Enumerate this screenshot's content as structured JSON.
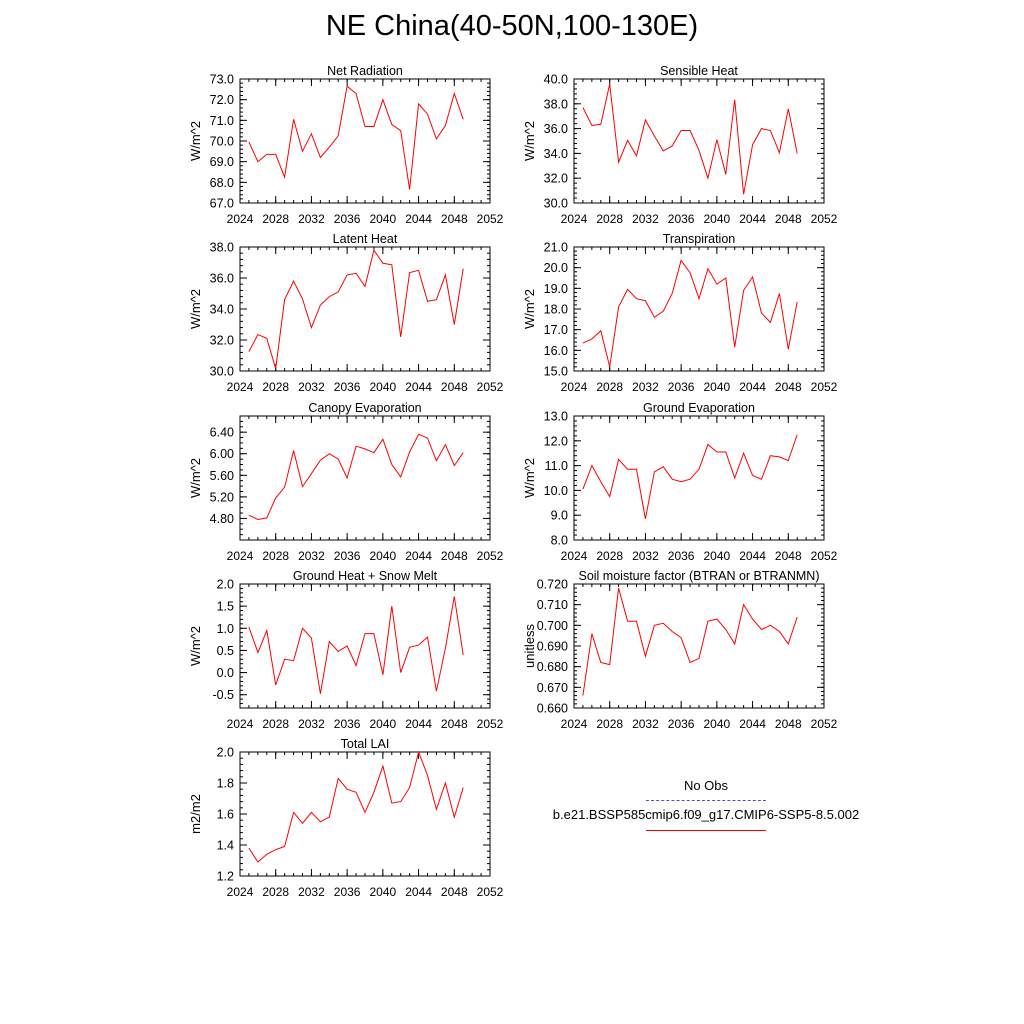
{
  "title": "NE China(40-50N,100-130E)",
  "colors": {
    "model": "#ff0000",
    "obs": "#5050c0",
    "axis": "#000000"
  },
  "legend": {
    "obs_label": "No Obs",
    "model_label": "b.e21.BSSP585cmip6.f09_g17.CMIP6-SSP5-8.5.002"
  },
  "chart_data": [
    {
      "type": "line",
      "title": "Net Radiation",
      "ylabel": "W/m^2",
      "xlim": [
        2024,
        2052
      ],
      "ylim": [
        67.0,
        73.0
      ],
      "xticks": [
        2024,
        2028,
        2032,
        2036,
        2040,
        2044,
        2048,
        2052
      ],
      "xtick_labels": [
        "2024",
        "2028",
        "2032",
        "2036",
        "2040",
        "2044",
        "2048",
        "2052"
      ],
      "yticks": [
        67.0,
        68.0,
        69.0,
        70.0,
        71.0,
        72.0,
        73.0
      ],
      "ytick_labels": [
        "67.0",
        "68.0",
        "69.0",
        "70.0",
        "71.0",
        "72.0",
        "73.0"
      ],
      "yminor_step": 0.2,
      "x": [
        2025,
        2026,
        2027,
        2028,
        2029,
        2030,
        2031,
        2032,
        2033,
        2034,
        2035,
        2036,
        2037,
        2038,
        2039,
        2040,
        2041,
        2042,
        2043,
        2044,
        2045,
        2046,
        2047,
        2048,
        2049
      ],
      "values": [
        69.95,
        69.0,
        69.35,
        69.35,
        68.25,
        71.05,
        69.5,
        70.35,
        69.2,
        69.7,
        70.25,
        72.65,
        72.3,
        70.7,
        70.7,
        72.0,
        70.8,
        70.5,
        67.65,
        71.8,
        71.3,
        70.1,
        70.75,
        72.3,
        71.05
      ]
    },
    {
      "type": "line",
      "title": "Sensible Heat",
      "ylabel": "W/m^2",
      "xlim": [
        2024,
        2052
      ],
      "ylim": [
        30.0,
        40.0
      ],
      "xticks": [
        2024,
        2028,
        2032,
        2036,
        2040,
        2044,
        2048,
        2052
      ],
      "xtick_labels": [
        "2024",
        "2028",
        "2032",
        "2036",
        "2040",
        "2044",
        "2048",
        "2052"
      ],
      "yticks": [
        30.0,
        32.0,
        34.0,
        36.0,
        38.0,
        40.0
      ],
      "ytick_labels": [
        "30.0",
        "32.0",
        "34.0",
        "36.0",
        "38.0",
        "40.0"
      ],
      "yminor_step": 0.4,
      "x": [
        2025,
        2026,
        2027,
        2028,
        2029,
        2030,
        2031,
        2032,
        2033,
        2034,
        2035,
        2036,
        2037,
        2038,
        2039,
        2040,
        2041,
        2042,
        2043,
        2044,
        2045,
        2046,
        2047,
        2048,
        2049
      ],
      "values": [
        37.7,
        36.25,
        36.35,
        39.6,
        33.3,
        35.05,
        33.8,
        36.7,
        35.4,
        34.2,
        34.6,
        35.85,
        35.85,
        34.25,
        32.0,
        35.1,
        32.3,
        38.35,
        30.7,
        34.7,
        36.0,
        35.85,
        34.05,
        37.6,
        34.0
      ]
    },
    {
      "type": "line",
      "title": "Latent Heat",
      "ylabel": "W/m^2",
      "xlim": [
        2024,
        2052
      ],
      "ylim": [
        30.0,
        38.0
      ],
      "xticks": [
        2024,
        2028,
        2032,
        2036,
        2040,
        2044,
        2048,
        2052
      ],
      "xtick_labels": [
        "2024",
        "2028",
        "2032",
        "2036",
        "2040",
        "2044",
        "2048",
        "2052"
      ],
      "yticks": [
        30.0,
        32.0,
        34.0,
        36.0,
        38.0
      ],
      "ytick_labels": [
        "30.0",
        "32.0",
        "34.0",
        "36.0",
        "38.0"
      ],
      "yminor_step": 0.4,
      "x": [
        2025,
        2026,
        2027,
        2028,
        2029,
        2030,
        2031,
        2032,
        2033,
        2034,
        2035,
        2036,
        2037,
        2038,
        2039,
        2040,
        2041,
        2042,
        2043,
        2044,
        2045,
        2046,
        2047,
        2048,
        2049
      ],
      "values": [
        31.25,
        32.35,
        32.1,
        30.15,
        34.6,
        35.8,
        34.65,
        32.8,
        34.25,
        34.8,
        35.1,
        36.2,
        36.3,
        35.45,
        37.8,
        36.95,
        36.85,
        32.2,
        36.35,
        36.5,
        34.5,
        34.6,
        36.2,
        33.0,
        36.6
      ]
    },
    {
      "type": "line",
      "title": "Transpiration",
      "ylabel": "W/m^2",
      "xlim": [
        2024,
        2052
      ],
      "ylim": [
        15.0,
        21.0
      ],
      "xticks": [
        2024,
        2028,
        2032,
        2036,
        2040,
        2044,
        2048,
        2052
      ],
      "xtick_labels": [
        "2024",
        "2028",
        "2032",
        "2036",
        "2040",
        "2044",
        "2048",
        "2052"
      ],
      "yticks": [
        15.0,
        16.0,
        17.0,
        18.0,
        19.0,
        20.0,
        21.0
      ],
      "ytick_labels": [
        "15.0",
        "16.0",
        "17.0",
        "18.0",
        "19.0",
        "20.0",
        "21.0"
      ],
      "yminor_step": 0.2,
      "x": [
        2025,
        2026,
        2027,
        2028,
        2029,
        2030,
        2031,
        2032,
        2033,
        2034,
        2035,
        2036,
        2037,
        2038,
        2039,
        2040,
        2041,
        2042,
        2043,
        2044,
        2045,
        2046,
        2047,
        2048,
        2049
      ],
      "values": [
        16.35,
        16.55,
        16.95,
        15.2,
        18.1,
        18.95,
        18.5,
        18.4,
        17.6,
        17.9,
        18.75,
        20.35,
        19.75,
        18.5,
        19.95,
        19.2,
        19.5,
        16.15,
        18.9,
        19.55,
        17.8,
        17.35,
        18.75,
        16.05,
        18.35
      ]
    },
    {
      "type": "line",
      "title": "Canopy Evaporation",
      "ylabel": "W/m^2",
      "xlim": [
        2024,
        2052
      ],
      "ylim": [
        4.4,
        6.7
      ],
      "xticks": [
        2024,
        2028,
        2032,
        2036,
        2040,
        2044,
        2048,
        2052
      ],
      "xtick_labels": [
        "2024",
        "2028",
        "2032",
        "2036",
        "2040",
        "2044",
        "2048",
        "2052"
      ],
      "yticks": [
        4.8,
        5.2,
        5.6,
        6.0,
        6.4
      ],
      "ytick_labels": [
        "4.80",
        "5.20",
        "5.60",
        "6.00",
        "6.40"
      ],
      "yminor_step": 0.1,
      "x": [
        2025,
        2026,
        2027,
        2028,
        2029,
        2030,
        2031,
        2032,
        2033,
        2034,
        2035,
        2036,
        2037,
        2038,
        2039,
        2040,
        2041,
        2042,
        2043,
        2044,
        2045,
        2046,
        2047,
        2048,
        2049
      ],
      "values": [
        4.86,
        4.78,
        4.81,
        5.18,
        5.38,
        6.06,
        5.39,
        5.63,
        5.88,
        6.0,
        5.9,
        5.55,
        6.14,
        6.09,
        6.02,
        6.27,
        5.8,
        5.57,
        6.03,
        6.36,
        6.29,
        5.87,
        6.17,
        5.78,
        6.02
      ]
    },
    {
      "type": "line",
      "title": "Ground Evaporation",
      "ylabel": "W/m^2",
      "xlim": [
        2024,
        2052
      ],
      "ylim": [
        8.0,
        13.0
      ],
      "xticks": [
        2024,
        2028,
        2032,
        2036,
        2040,
        2044,
        2048,
        2052
      ],
      "xtick_labels": [
        "2024",
        "2028",
        "2032",
        "2036",
        "2040",
        "2044",
        "2048",
        "2052"
      ],
      "yticks": [
        8.0,
        9.0,
        10.0,
        11.0,
        12.0,
        13.0
      ],
      "ytick_labels": [
        "8.0",
        "9.0",
        "10.0",
        "11.0",
        "12.0",
        "13.0"
      ],
      "yminor_step": 0.2,
      "x": [
        2025,
        2026,
        2027,
        2028,
        2029,
        2030,
        2031,
        2032,
        2033,
        2034,
        2035,
        2036,
        2037,
        2038,
        2039,
        2040,
        2041,
        2042,
        2043,
        2044,
        2045,
        2046,
        2047,
        2048,
        2049
      ],
      "values": [
        10.05,
        11.0,
        10.35,
        9.75,
        11.25,
        10.85,
        10.85,
        8.85,
        10.75,
        10.95,
        10.45,
        10.35,
        10.45,
        10.85,
        11.85,
        11.55,
        11.55,
        10.5,
        11.5,
        10.6,
        10.45,
        11.4,
        11.35,
        11.2,
        12.25
      ]
    },
    {
      "type": "line",
      "title": "Ground Heat + Snow Melt",
      "ylabel": "W/m^2",
      "xlim": [
        2024,
        2052
      ],
      "ylim": [
        -0.8,
        2.0
      ],
      "xticks": [
        2024,
        2028,
        2032,
        2036,
        2040,
        2044,
        2048,
        2052
      ],
      "xtick_labels": [
        "2024",
        "2028",
        "2032",
        "2036",
        "2040",
        "2044",
        "2048",
        "2052"
      ],
      "yticks": [
        -0.5,
        0.0,
        0.5,
        1.0,
        1.5,
        2.0
      ],
      "ytick_labels": [
        "-0.5",
        "0.0",
        "0.5",
        "1.0",
        "1.5",
        "2.0"
      ],
      "yminor_step": 0.1,
      "x": [
        2025,
        2026,
        2027,
        2028,
        2029,
        2030,
        2031,
        2032,
        2033,
        2034,
        2035,
        2036,
        2037,
        2038,
        2039,
        2040,
        2041,
        2042,
        2043,
        2044,
        2045,
        2046,
        2047,
        2048,
        2049
      ],
      "values": [
        1.03,
        0.45,
        0.95,
        -0.28,
        0.3,
        0.27,
        1.0,
        0.78,
        -0.48,
        0.7,
        0.48,
        0.6,
        0.16,
        0.88,
        0.88,
        -0.05,
        1.5,
        0.0,
        0.57,
        0.62,
        0.8,
        -0.42,
        0.55,
        1.72,
        0.4
      ]
    },
    {
      "type": "line",
      "title": "Soil moisture factor (BTRAN or BTRANMN)",
      "ylabel": "unitless",
      "xlim": [
        2024,
        2052
      ],
      "ylim": [
        0.66,
        0.72
      ],
      "xticks": [
        2024,
        2028,
        2032,
        2036,
        2040,
        2044,
        2048,
        2052
      ],
      "xtick_labels": [
        "2024",
        "2028",
        "2032",
        "2036",
        "2040",
        "2044",
        "2048",
        "2052"
      ],
      "yticks": [
        0.66,
        0.67,
        0.68,
        0.69,
        0.7,
        0.71,
        0.72
      ],
      "ytick_labels": [
        "0.660",
        "0.670",
        "0.680",
        "0.690",
        "0.700",
        "0.710",
        "0.720"
      ],
      "yminor_step": 0.002,
      "x": [
        2025,
        2026,
        2027,
        2028,
        2029,
        2030,
        2031,
        2032,
        2033,
        2034,
        2035,
        2036,
        2037,
        2038,
        2039,
        2040,
        2041,
        2042,
        2043,
        2044,
        2045,
        2046,
        2047,
        2048,
        2049
      ],
      "values": [
        0.666,
        0.696,
        0.682,
        0.681,
        0.718,
        0.702,
        0.702,
        0.685,
        0.7,
        0.701,
        0.697,
        0.694,
        0.682,
        0.684,
        0.702,
        0.703,
        0.698,
        0.691,
        0.71,
        0.703,
        0.698,
        0.7,
        0.697,
        0.691,
        0.704
      ]
    },
    {
      "type": "line",
      "title": "Total LAI",
      "ylabel": "m2/m2",
      "xlim": [
        2024,
        2052
      ],
      "ylim": [
        1.2,
        2.0
      ],
      "xticks": [
        2024,
        2028,
        2032,
        2036,
        2040,
        2044,
        2048,
        2052
      ],
      "xtick_labels": [
        "2024",
        "2028",
        "2032",
        "2036",
        "2040",
        "2044",
        "2048",
        "2052"
      ],
      "yticks": [
        1.2,
        1.4,
        1.6,
        1.8,
        2.0
      ],
      "ytick_labels": [
        "1.2",
        "1.4",
        "1.6",
        "1.8",
        "2.0"
      ],
      "yminor_step": 0.04,
      "x": [
        2025,
        2026,
        2027,
        2028,
        2029,
        2030,
        2031,
        2032,
        2033,
        2034,
        2035,
        2036,
        2037,
        2038,
        2039,
        2040,
        2041,
        2042,
        2043,
        2044,
        2045,
        2046,
        2047,
        2048,
        2049
      ],
      "values": [
        1.38,
        1.29,
        1.34,
        1.37,
        1.39,
        1.61,
        1.54,
        1.61,
        1.55,
        1.58,
        1.83,
        1.76,
        1.74,
        1.61,
        1.74,
        1.91,
        1.67,
        1.68,
        1.77,
        2.0,
        1.85,
        1.63,
        1.8,
        1.58,
        1.77
      ]
    }
  ]
}
